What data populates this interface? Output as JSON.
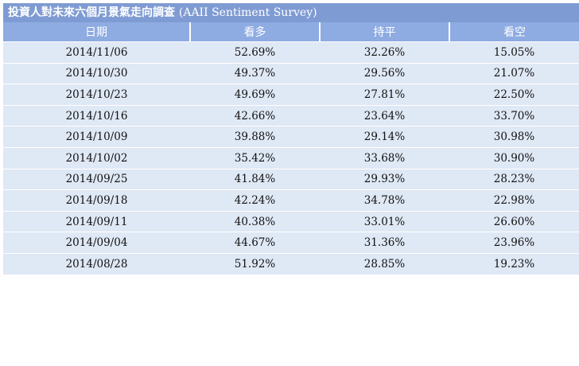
{
  "caption": {
    "zh": "投資人對未來六個月景氣走向調查",
    "en": "(AAII Sentiment Survey)"
  },
  "columns": [
    "日期",
    "看多",
    "持平",
    "看空"
  ],
  "rows": [
    [
      "2014/11/06",
      "52.69%",
      "32.26%",
      "15.05%"
    ],
    [
      "2014/10/30",
      "49.37%",
      "29.56%",
      "21.07%"
    ],
    [
      "2014/10/23",
      "49.69%",
      "27.81%",
      "22.50%"
    ],
    [
      "2014/10/16",
      "42.66%",
      "23.64%",
      "33.70%"
    ],
    [
      "2014/10/09",
      "39.88%",
      "29.14%",
      "30.98%"
    ],
    [
      "2014/10/02",
      "35.42%",
      "33.68%",
      "30.90%"
    ],
    [
      "2014/09/25",
      "41.84%",
      "29.93%",
      "28.23%"
    ],
    [
      "2014/09/18",
      "42.24%",
      "34.78%",
      "22.98%"
    ],
    [
      "2014/09/11",
      "40.38%",
      "33.01%",
      "26.60%"
    ],
    [
      "2014/09/04",
      "44.67%",
      "31.36%",
      "23.96%"
    ],
    [
      "2014/08/28",
      "51.92%",
      "28.85%",
      "19.23%"
    ]
  ]
}
